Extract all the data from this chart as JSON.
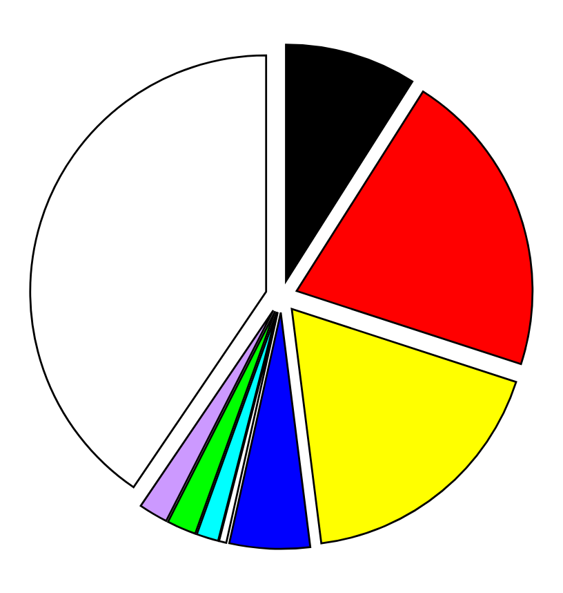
{
  "chart_data": {
    "type": "pie",
    "categories": [
      null,
      null,
      null,
      null,
      null,
      null,
      null,
      null,
      null
    ],
    "values": [
      9,
      21,
      18,
      5.5,
      0.5,
      1.5,
      2,
      2,
      40.5
    ],
    "colors": [
      "#000000",
      "#ff0000",
      "#ffff00",
      "#0000ff",
      "#ffffff",
      "#00ffff",
      "#00ff00",
      "#cc99ff",
      "#ffffff"
    ]
  }
}
